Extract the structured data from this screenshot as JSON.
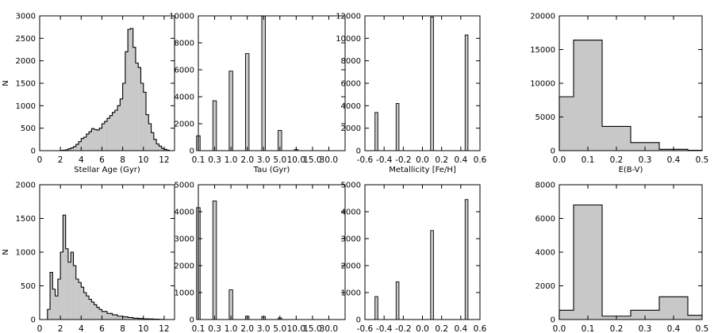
{
  "figure": {
    "description_colors": {
      "bar_fill": "#c8c8c8",
      "bar_stroke": "#000000",
      "axis": "#000000"
    }
  },
  "chart_data": [
    {
      "type": "bar",
      "bar_mode": "histogram-step",
      "row": 0,
      "col": 0,
      "xlabel": "Stellar Age (Gyr)",
      "ylabel": "N",
      "xlim": [
        0,
        13
      ],
      "ylim": [
        0,
        3000
      ],
      "xticks": [
        0,
        2,
        4,
        6,
        8,
        10,
        12
      ],
      "xtick_labels": [
        "0",
        "2",
        "4",
        "6",
        "8",
        "10",
        "12"
      ],
      "yticks": [
        0,
        500,
        1000,
        1500,
        2000,
        2500,
        3000
      ],
      "ytick_labels": [
        "0",
        "500",
        "1000",
        "1500",
        "2000",
        "2500",
        "3000"
      ],
      "bin_edges": [
        2.0,
        2.25,
        2.5,
        2.75,
        3.0,
        3.25,
        3.5,
        3.75,
        4.0,
        4.25,
        4.5,
        4.75,
        5.0,
        5.25,
        5.5,
        5.75,
        6.0,
        6.25,
        6.5,
        6.75,
        7.0,
        7.25,
        7.5,
        7.75,
        8.0,
        8.25,
        8.5,
        8.75,
        9.0,
        9.25,
        9.5,
        9.75,
        10.0,
        10.25,
        10.5,
        10.75,
        11.0,
        11.25,
        11.5,
        11.75,
        12.0,
        12.25,
        12.5
      ],
      "values": [
        5,
        10,
        20,
        40,
        60,
        90,
        140,
        200,
        270,
        300,
        370,
        420,
        490,
        470,
        460,
        500,
        600,
        650,
        720,
        780,
        850,
        900,
        1000,
        1150,
        1500,
        2200,
        2700,
        2720,
        2300,
        1950,
        1850,
        1500,
        1300,
        800,
        600,
        400,
        250,
        150,
        100,
        50,
        30,
        10
      ]
    },
    {
      "type": "bar",
      "bar_mode": "spikes",
      "row": 0,
      "col": 1,
      "xlabel": "Tau (Gyr)",
      "ylabel": "",
      "xlim": [
        0,
        9
      ],
      "ylim": [
        0,
        10000
      ],
      "xticks": [
        0,
        1,
        2,
        3,
        4,
        5,
        6,
        7,
        8,
        9
      ],
      "xtick_labels": [
        "0.1",
        "0.3",
        "1.0",
        "2.0",
        "3.0",
        "5.0",
        "10.0",
        "15.0",
        "30.0",
        ""
      ],
      "yticks": [
        0,
        2000,
        4000,
        6000,
        8000,
        10000
      ],
      "ytick_labels": [
        "0",
        "2000",
        "4000",
        "6000",
        "8000",
        "10000"
      ],
      "positions": [
        0,
        1,
        2,
        3,
        4,
        5,
        6,
        7,
        8
      ],
      "bar_width": 0.22,
      "values": [
        1100,
        3700,
        5900,
        7200,
        10100,
        1500,
        80,
        0,
        0
      ]
    },
    {
      "type": "bar",
      "bar_mode": "spikes",
      "row": 0,
      "col": 2,
      "xlabel": "Metallicity [Fe/H]",
      "ylabel": "",
      "xlim": [
        -0.6,
        0.6
      ],
      "ylim": [
        0,
        12000
      ],
      "xticks": [
        -0.6,
        -0.4,
        -0.2,
        0.0,
        0.2,
        0.4,
        0.6
      ],
      "xtick_labels": [
        "-0.6",
        "-0.4",
        "-0.2",
        "0.0",
        "0.2",
        "0.4",
        "0.6"
      ],
      "yticks": [
        0,
        2000,
        4000,
        6000,
        8000,
        10000,
        12000
      ],
      "ytick_labels": [
        "0",
        "2000",
        "4000",
        "6000",
        "8000",
        "10000",
        "12000"
      ],
      "positions": [
        -0.48,
        -0.26,
        0.1,
        0.46
      ],
      "bar_width": 0.03,
      "values": [
        3400,
        4200,
        11900,
        10300
      ]
    },
    {
      "type": "bar",
      "bar_mode": "histogram-step",
      "row": 0,
      "col": 3,
      "xlabel": "E(B-V)",
      "ylabel": "",
      "xlim": [
        0,
        0.5
      ],
      "ylim": [
        0,
        20000
      ],
      "xticks": [
        0.0,
        0.1,
        0.2,
        0.3,
        0.4,
        0.5
      ],
      "xtick_labels": [
        "0.0",
        "0.1",
        "0.2",
        "0.3",
        "0.4",
        "0.5"
      ],
      "yticks": [
        0,
        5000,
        10000,
        15000,
        20000
      ],
      "ytick_labels": [
        "0",
        "5000",
        "10000",
        "15000",
        "20000"
      ],
      "bin_edges": [
        0.0,
        0.05,
        0.15,
        0.25,
        0.35,
        0.45,
        0.5
      ],
      "values": [
        8000,
        16400,
        3600,
        1200,
        200,
        50
      ]
    },
    {
      "type": "bar",
      "bar_mode": "histogram-step",
      "row": 1,
      "col": 0,
      "xlabel": "Stellar Age (Gyr)",
      "ylabel": "N",
      "xlim": [
        0,
        13
      ],
      "ylim": [
        0,
        2000
      ],
      "xticks": [
        0,
        2,
        4,
        6,
        8,
        10,
        12
      ],
      "xtick_labels": [
        "0",
        "2",
        "4",
        "6",
        "8",
        "10",
        "12"
      ],
      "yticks": [
        0,
        500,
        1000,
        1500,
        2000
      ],
      "ytick_labels": [
        "0",
        "500",
        "1000",
        "1500",
        "2000"
      ],
      "bin_edges": [
        0.75,
        1.0,
        1.25,
        1.5,
        1.75,
        2.0,
        2.25,
        2.5,
        2.75,
        3.0,
        3.25,
        3.5,
        3.75,
        4.0,
        4.25,
        4.5,
        4.75,
        5.0,
        5.25,
        5.5,
        5.75,
        6.0,
        6.5,
        7.0,
        7.5,
        8.0,
        8.5,
        9.0,
        9.5,
        10.0,
        10.5,
        11.0,
        11.5,
        12.0
      ],
      "values": [
        150,
        700,
        450,
        350,
        600,
        1000,
        1550,
        1050,
        850,
        1000,
        800,
        600,
        550,
        480,
        400,
        350,
        300,
        260,
        220,
        180,
        150,
        120,
        90,
        70,
        50,
        40,
        30,
        20,
        15,
        10,
        8,
        5,
        3
      ]
    },
    {
      "type": "bar",
      "bar_mode": "spikes",
      "row": 1,
      "col": 1,
      "xlabel": "Tau (Gyr)",
      "ylabel": "",
      "xlim": [
        0,
        9
      ],
      "ylim": [
        0,
        5000
      ],
      "xticks": [
        0,
        1,
        2,
        3,
        4,
        5,
        6,
        7,
        8,
        9
      ],
      "xtick_labels": [
        "0.1",
        "0.3",
        "1.0",
        "2.0",
        "3.0",
        "5.0",
        "10.0",
        "15.0",
        "30.0",
        ""
      ],
      "yticks": [
        0,
        1000,
        2000,
        3000,
        4000,
        5000
      ],
      "ytick_labels": [
        "0",
        "1000",
        "2000",
        "3000",
        "4000",
        "5000"
      ],
      "positions": [
        0,
        1,
        2,
        3,
        4,
        5,
        6,
        7,
        8
      ],
      "bar_width": 0.22,
      "values": [
        4150,
        4400,
        1100,
        120,
        110,
        60,
        0,
        0,
        0
      ]
    },
    {
      "type": "bar",
      "bar_mode": "spikes",
      "row": 1,
      "col": 2,
      "xlabel": "Metallicity [Fe/H]",
      "ylabel": "",
      "xlim": [
        -0.6,
        0.6
      ],
      "ylim": [
        0,
        5000
      ],
      "xticks": [
        -0.6,
        -0.4,
        -0.2,
        0.0,
        0.2,
        0.4,
        0.6
      ],
      "xtick_labels": [
        "-0.6",
        "-0.4",
        "-0.2",
        "0.0",
        "0.2",
        "0.4",
        "0.6"
      ],
      "yticks": [
        0,
        1000,
        2000,
        3000,
        4000,
        5000
      ],
      "ytick_labels": [
        "0",
        "1000",
        "2000",
        "3000",
        "4000",
        "5000"
      ],
      "positions": [
        -0.48,
        -0.26,
        0.1,
        0.46
      ],
      "bar_width": 0.03,
      "values": [
        850,
        1400,
        3300,
        4450
      ]
    },
    {
      "type": "bar",
      "bar_mode": "histogram-step",
      "row": 1,
      "col": 3,
      "xlabel": "E(B-V)",
      "ylabel": "",
      "xlim": [
        0,
        0.5
      ],
      "ylim": [
        0,
        8000
      ],
      "xticks": [
        0.0,
        0.1,
        0.2,
        0.3,
        0.4,
        0.5
      ],
      "xtick_labels": [
        "0.0",
        "0.1",
        "0.2",
        "0.3",
        "0.4",
        "0.5"
      ],
      "yticks": [
        0,
        2000,
        4000,
        6000,
        8000
      ],
      "ytick_labels": [
        "0",
        "2000",
        "4000",
        "6000",
        "8000"
      ],
      "bin_edges": [
        0.0,
        0.05,
        0.15,
        0.25,
        0.35,
        0.45,
        0.5
      ],
      "values": [
        550,
        6800,
        200,
        550,
        1350,
        250
      ]
    }
  ]
}
